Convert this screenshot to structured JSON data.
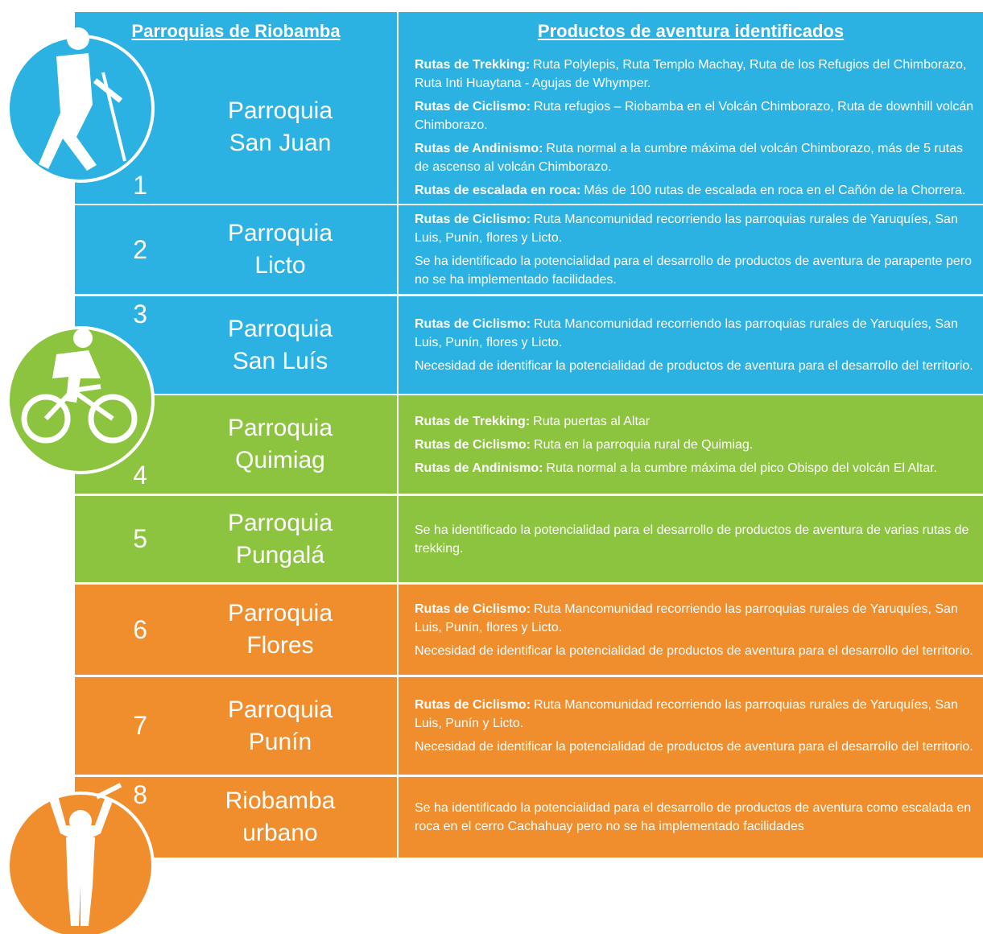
{
  "header": [
    "Parroquias de Riobamba",
    "Productos de aventura identificados"
  ],
  "rows": [
    {
      "number": "1",
      "name": [
        "Parroquia",
        "San Juan"
      ],
      "color": "#2bb1e2",
      "items": [
        {
          "label": "Rutas de Trekking:",
          "text": "Ruta Polylepis, Ruta Templo Machay, Ruta de los Refugios del Chimborazo, Ruta Inti Huaytana - Agujas de Whymper."
        },
        {
          "label": "Rutas de Ciclismo:",
          "text": "Ruta refugios – Riobamba en el Volcán Chimborazo, Ruta de downhill volcán Chimborazo."
        },
        {
          "label": "Rutas de Andinismo:",
          "text": "Ruta normal a la cumbre máxima del volcán Chimborazo, más de 5 rutas de ascenso al volcán Chimborazo."
        },
        {
          "label": "Rutas de escalada en roca:",
          "text": "Más de 100 rutas de escalada en roca en el Cañón de la Chorrera."
        }
      ]
    },
    {
      "number": "2",
      "name": [
        "Parroquia",
        "Licto"
      ],
      "color": "#2bb1e2",
      "items": [
        {
          "label": "Rutas de Ciclismo:",
          "text": "Ruta Mancomunidad recorriendo las parroquias rurales de Yaruquíes, San Luis, Punín, flores y Licto."
        },
        {
          "text": "Se ha identificado la potencialidad para el desarrollo de productos de aventura de parapente pero no se ha implementado facilidades."
        }
      ]
    },
    {
      "number": "3",
      "name": [
        "Parroquia",
        "San Luís"
      ],
      "color": "#2bb1e2",
      "items": [
        {
          "label": "Rutas de Ciclismo:",
          "text": "Ruta Mancomunidad recorriendo las parroquias rurales de Yaruquíes, San Luis, Punín, flores y Licto."
        },
        {
          "text": "Necesidad de identificar la potencialidad de productos de aventura para el desarrollo del territorio."
        }
      ]
    },
    {
      "number": "4",
      "name": [
        "Parroquia",
        "Quimiag"
      ],
      "color": "#8cc43f",
      "items": [
        {
          "label": "Rutas de Trekking:",
          "text": "Ruta puertas al Altar"
        },
        {
          "label": "Rutas de Ciclismo:",
          "text": "Ruta en la parroquia rural de Quimiag."
        },
        {
          "label": "Rutas de Andinismo:",
          "text": "Ruta normal a la cumbre máxima del pico Obispo del volcán El Altar."
        }
      ]
    },
    {
      "number": "5",
      "name": [
        "Parroquia",
        "Pungalá"
      ],
      "color": "#8cc43f",
      "items": [
        {
          "text": "Se ha identificado la potencialidad para el desarrollo de productos de aventura de varias rutas de trekking."
        }
      ]
    },
    {
      "number": "6",
      "name": [
        "Parroquia",
        "Flores"
      ],
      "color": "#f08d2c",
      "items": [
        {
          "label": "Rutas de Ciclismo:",
          "text": "Ruta Mancomunidad recorriendo las parroquias rurales de Yaruquíes, San Luis, Punín, flores y Licto."
        },
        {
          "text": "Necesidad de identificar la potencialidad de productos de aventura para el desarrollo del territorio."
        }
      ]
    },
    {
      "number": "7",
      "name": [
        "Parroquia",
        "Punín"
      ],
      "color": "#f08d2c",
      "items": [
        {
          "label": "Rutas de Ciclismo:",
          "text": "Ruta Mancomunidad recorriendo las parroquias rurales de Yaruquíes, San Luis, Punín y Licto."
        },
        {
          "text": "Necesidad de identificar la potencialidad de productos de aventura para el desarrollo del territorio."
        }
      ]
    },
    {
      "number": "8",
      "name": [
        "Riobamba",
        "urbano"
      ],
      "color": "#f08d2c",
      "items": [
        {
          "text": "Se ha identificado la potencialidad para el desarrollo de productos de aventura como escalada en roca en el cerro Cachahuay pero no se ha implementado facilidades"
        }
      ]
    }
  ]
}
